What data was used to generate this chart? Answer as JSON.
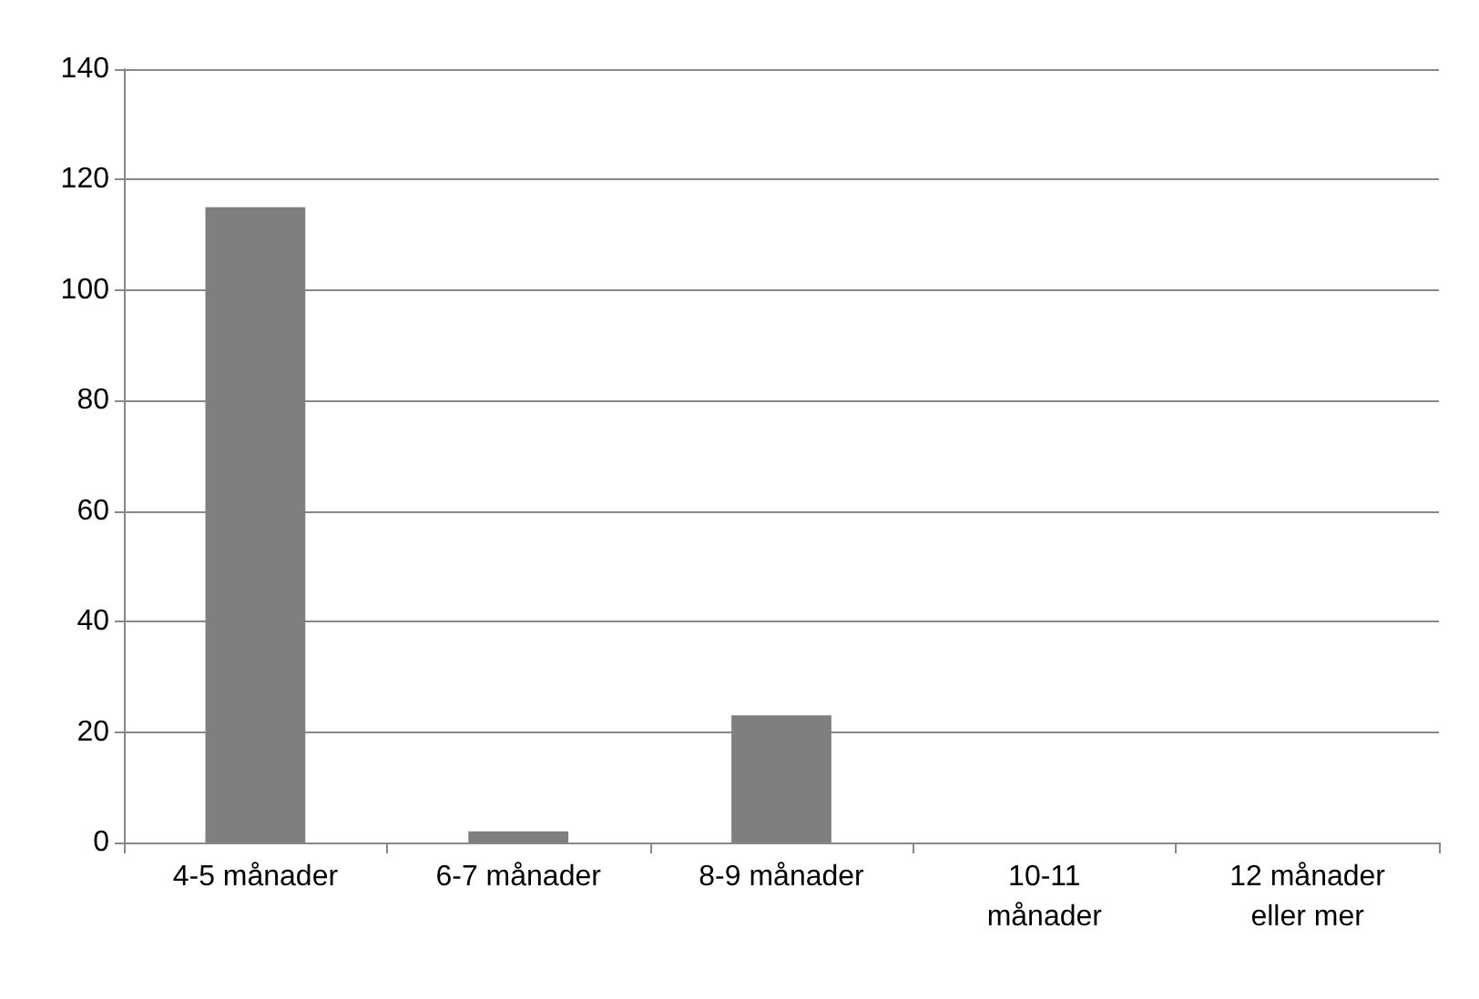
{
  "chart_data": {
    "type": "bar",
    "categories": [
      "4-5 månader",
      "6-7 månader",
      "8-9 månader",
      "10-11\nmånader",
      "12 månader\neller mer"
    ],
    "values": [
      115,
      2,
      23,
      0,
      0
    ],
    "color": "#7f7f7f",
    "ylim": [
      0,
      140
    ],
    "yticks": [
      0,
      20,
      40,
      60,
      80,
      100,
      120,
      140
    ],
    "grid": "y"
  }
}
